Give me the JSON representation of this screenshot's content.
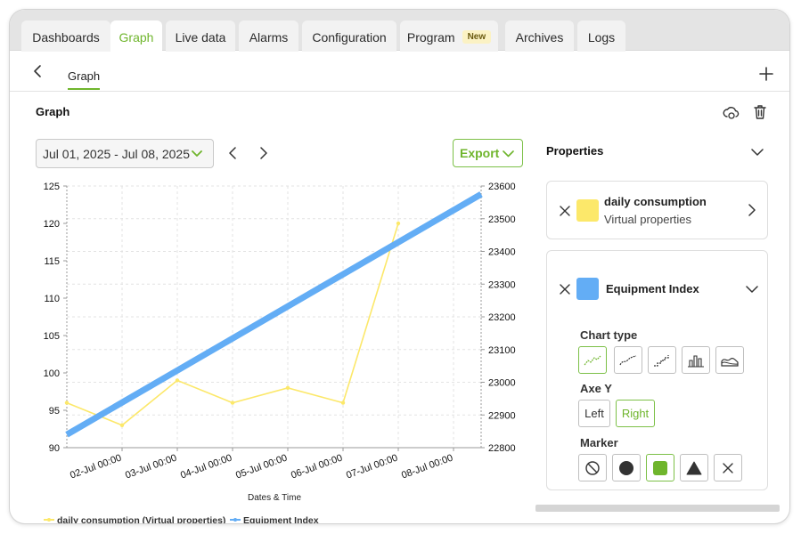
{
  "tabs": [
    {
      "label": "Dashboards",
      "active": false
    },
    {
      "label": "Graph",
      "active": true
    },
    {
      "label": "Live data",
      "active": false
    },
    {
      "label": "Alarms",
      "active": false
    },
    {
      "label": "Configuration",
      "active": false
    },
    {
      "label": "Program",
      "active": false,
      "badge": "New"
    },
    {
      "label": "Archives",
      "active": false
    },
    {
      "label": "Logs",
      "active": false
    }
  ],
  "subheader": {
    "tab_label": "Graph"
  },
  "section": {
    "title": "Graph"
  },
  "toolbar": {
    "date_range": "Jul 01, 2025 - Jul 08, 2025",
    "export_label": "Export"
  },
  "colors": {
    "accent": "#6fb52c",
    "series_daily": "#fce86a",
    "series_equipment": "#63adf5"
  },
  "properties": {
    "title": "Properties",
    "cards": [
      {
        "title": "daily consumption",
        "subtitle": "Virtual properties",
        "color": "#fce86a",
        "expanded": false
      },
      {
        "title": "Equipment Index",
        "color": "#63adf5",
        "expanded": true,
        "chart_type_label": "Chart type",
        "chart_types": [
          "line-icon",
          "smooth-line-icon",
          "step-icon",
          "bar-icon",
          "area-icon"
        ],
        "chart_type_selected": 0,
        "axe_y_label": "Axe Y",
        "axe_y_options": [
          "Left",
          "Right"
        ],
        "axe_y_selected": 1,
        "marker_label": "Marker",
        "markers": [
          "no-marker-icon",
          "circle-icon",
          "square-icon",
          "triangle-icon",
          "cross-icon"
        ],
        "marker_selected": 2
      }
    ]
  },
  "chart_data": {
    "type": "line",
    "xlabel": "Dates & Time",
    "x_ticks": [
      "02-Jul 00:00",
      "03-Jul 00:00",
      "04-Jul 00:00",
      "05-Jul 00:00",
      "06-Jul 00:00",
      "07-Jul 00:00",
      "08-Jul 00:00"
    ],
    "xlim": [
      "2025-07-01T00:00",
      "2025-07-08T12:00"
    ],
    "y_left": {
      "lim": [
        90,
        125
      ],
      "ticks": [
        90,
        95,
        100,
        105,
        110,
        115,
        120,
        125
      ]
    },
    "y_right": {
      "lim": [
        22800,
        23600
      ],
      "ticks": [
        22800,
        22900,
        23000,
        23100,
        23200,
        23300,
        23400,
        23500,
        23600
      ]
    },
    "grid": true,
    "legend_position": "bottom-left",
    "series": [
      {
        "name": "daily consumption (Virtual properties)",
        "axis": "left",
        "color": "#fce86a",
        "x": [
          "2025-07-01T00:00",
          "2025-07-02T00:00",
          "2025-07-03T00:00",
          "2025-07-04T00:00",
          "2025-07-05T00:00",
          "2025-07-06T00:00",
          "2025-07-07T00:00"
        ],
        "values": [
          96,
          93,
          99,
          96,
          98,
          96,
          120
        ]
      },
      {
        "name": "Equipment Index",
        "axis": "right",
        "color": "#63adf5",
        "x": [
          "2025-07-01T00:00",
          "2025-07-08T12:00"
        ],
        "values": [
          22840,
          23575
        ]
      }
    ]
  }
}
